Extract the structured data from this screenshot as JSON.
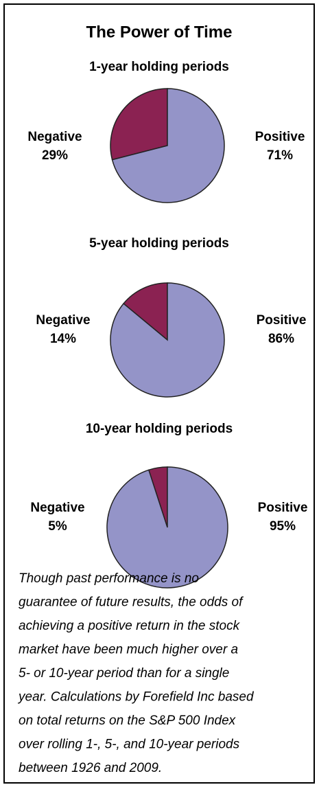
{
  "title": "The Power of Time",
  "chart_data": [
    {
      "type": "pie",
      "title": "1-year holding periods",
      "categories": [
        "Negative",
        "Positive"
      ],
      "values": [
        29,
        71
      ],
      "value_labels": [
        "29%",
        "71%"
      ],
      "colors": [
        "#8b2252",
        "#9494c8"
      ]
    },
    {
      "type": "pie",
      "title": "5-year holding periods",
      "categories": [
        "Negative",
        "Positive"
      ],
      "values": [
        14,
        86
      ],
      "value_labels": [
        "14%",
        "86%"
      ],
      "colors": [
        "#8b2252",
        "#9494c8"
      ]
    },
    {
      "type": "pie",
      "title": "10-year holding periods",
      "categories": [
        "Negative",
        "Positive"
      ],
      "values": [
        5,
        95
      ],
      "value_labels": [
        "5%",
        "95%"
      ],
      "colors": [
        "#8b2252",
        "#9494c8"
      ]
    }
  ],
  "note": [
    "Though past performance is no",
    "guarantee of future results, the odds of",
    "achieving a positive return in the stock",
    "market have been much higher over a",
    "5- or 10-year period than for a single",
    "year. Calculations by Forefield Inc based",
    "on total returns on the S&P 500 Index",
    "over rolling 1-, 5-, and 10-year periods",
    "between 1926 and 2009."
  ]
}
